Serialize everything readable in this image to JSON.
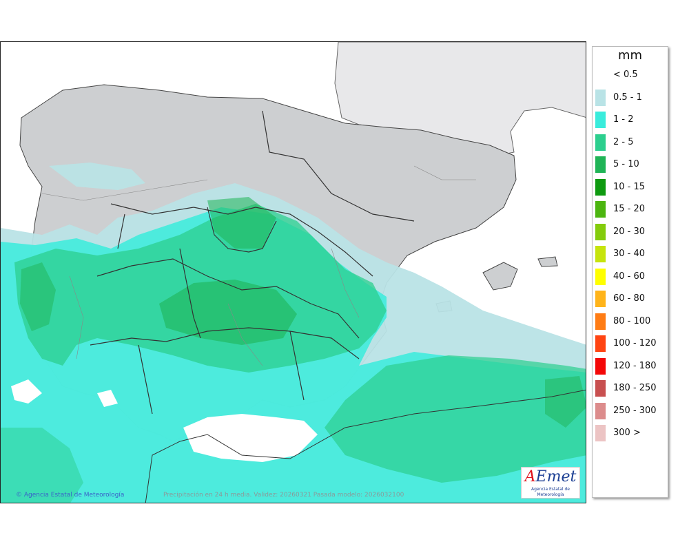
{
  "map": {
    "copyright": "Agencia Estatal de Meteorología",
    "caption": "Precipitación en 24 h media. Validez: 20260321 Pasada modelo: 2026032100",
    "logo": {
      "word_a": "A",
      "word_rest": "Emet",
      "subtitle": "Agencia Estatal de Meteorología"
    }
  },
  "legend": {
    "unit": "mm",
    "items": [
      {
        "label": "< 0.5",
        "color": "#ffffff"
      },
      {
        "label": "0.5 - 1",
        "color": "#b9e3e6"
      },
      {
        "label": "1 - 2",
        "color": "#39ecdc"
      },
      {
        "label": "2 - 5",
        "color": "#2ccf8e"
      },
      {
        "label": "5 - 10",
        "color": "#1fb456"
      },
      {
        "label": "10 - 15",
        "color": "#0e9a10"
      },
      {
        "label": "15 - 20",
        "color": "#4cb510"
      },
      {
        "label": "20 - 30",
        "color": "#84cc0c"
      },
      {
        "label": "30 - 40",
        "color": "#c6e40c"
      },
      {
        "label": "40 - 60",
        "color": "#ffff00"
      },
      {
        "label": "60 - 80",
        "color": "#ffb41a"
      },
      {
        "label": "80 - 100",
        "color": "#ff7c14"
      },
      {
        "label": "100 - 120",
        "color": "#ff4412"
      },
      {
        "label": "120 - 180",
        "color": "#f40808"
      },
      {
        "label": "180 - 250",
        "color": "#c85050"
      },
      {
        "label": "250 - 300",
        "color": "#dc8c8c"
      },
      {
        "label": "300 >",
        "color": "#ecc4c4"
      }
    ]
  }
}
